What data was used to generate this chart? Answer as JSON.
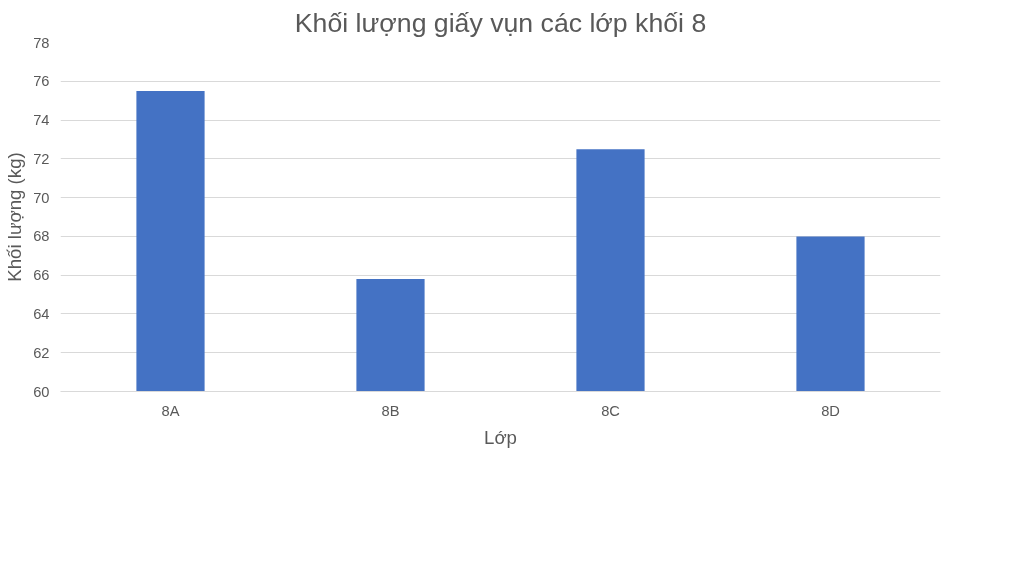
{
  "chart_data": {
    "type": "bar",
    "title": "Khối lượng giấy vụn các lớp khối 8",
    "xlabel": "Lớp",
    "ylabel": "Khối lượng (kg)",
    "categories": [
      "8A",
      "8B",
      "8C",
      "8D"
    ],
    "values": [
      75.5,
      65.8,
      72.5,
      68
    ],
    "color": "#4472c4",
    "ylim": [
      60,
      78
    ],
    "yticks": [
      60,
      62,
      64,
      66,
      68,
      70,
      72,
      74,
      76,
      78
    ],
    "grid": "y"
  }
}
